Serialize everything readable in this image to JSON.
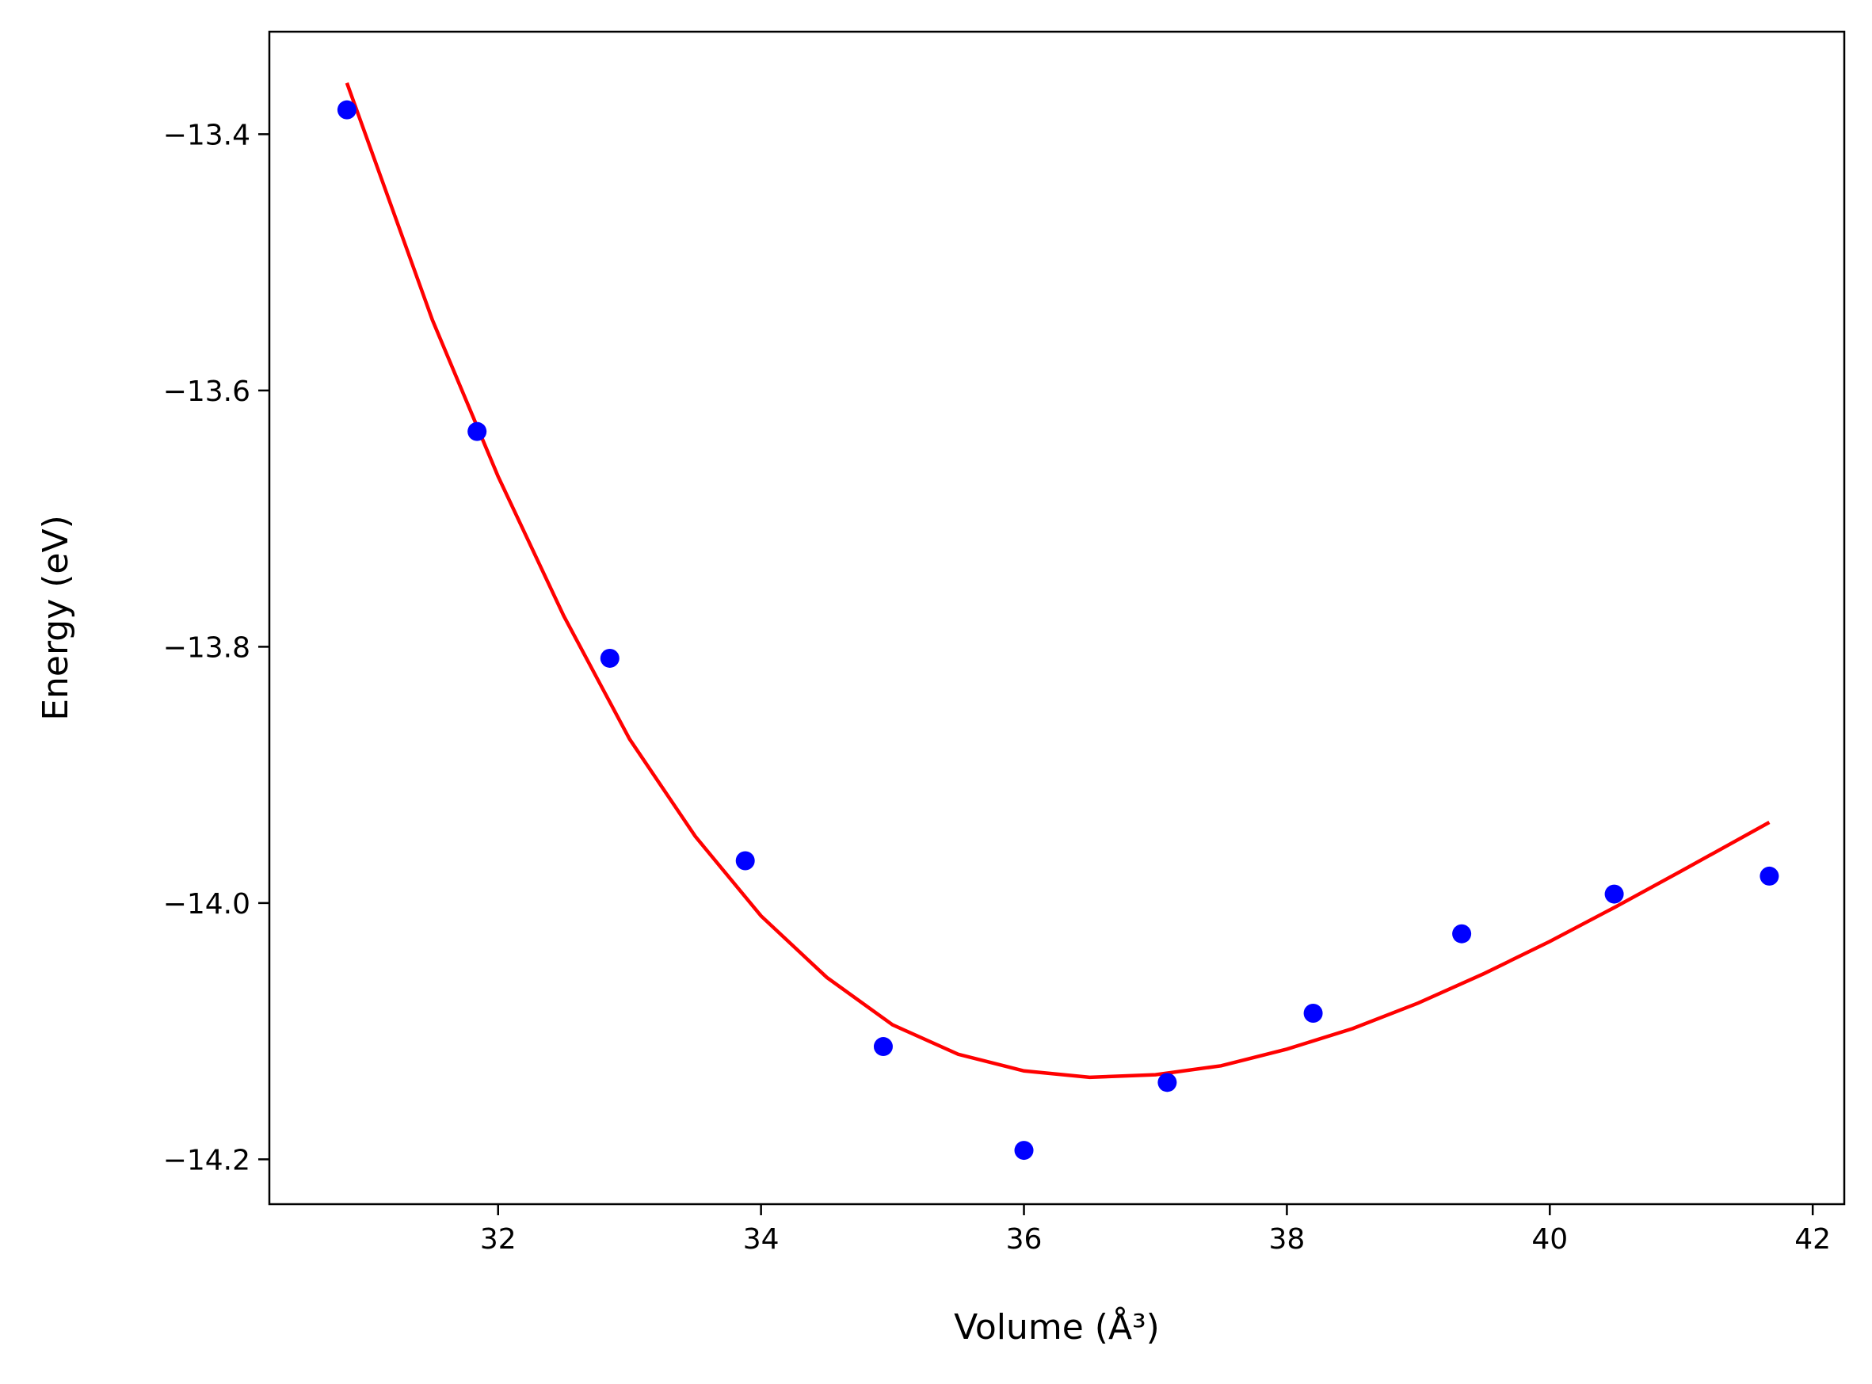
{
  "chart_data": {
    "type": "scatter",
    "title": "",
    "xlabel": "Volume (Å³)",
    "ylabel": "Energy (eV)",
    "xlim": [
      30.26,
      42.24
    ],
    "ylim": [
      -14.235,
      -13.32
    ],
    "xticks": [
      32,
      34,
      36,
      38,
      40,
      42
    ],
    "xtick_labels": [
      "32",
      "34",
      "36",
      "38",
      "40",
      "42"
    ],
    "yticks": [
      -14.2,
      -14.0,
      -13.8,
      -13.6,
      -13.4
    ],
    "ytick_labels": [
      "−14.2",
      "−14.0",
      "−13.8",
      "−13.6",
      "−13.4"
    ],
    "grid": false,
    "series": [
      {
        "kind": "points",
        "color": "#0000ff",
        "x": [
          30.85,
          31.84,
          32.85,
          33.88,
          34.93,
          36.0,
          37.09,
          38.2,
          39.33,
          40.49,
          41.67
        ],
        "y": [
          -13.381,
          -13.632,
          -13.809,
          -13.967,
          -14.112,
          -14.193,
          -14.14,
          -14.086,
          -14.024,
          -13.993,
          -13.979
        ]
      },
      {
        "kind": "line",
        "color": "#ff0000",
        "x": [
          30.85,
          31.5,
          32.0,
          32.5,
          33.0,
          33.5,
          34.0,
          34.5,
          35.0,
          35.5,
          36.0,
          36.5,
          37.0,
          37.5,
          38.0,
          38.5,
          39.0,
          39.5,
          40.0,
          40.5,
          41.0,
          41.67
        ],
        "y": [
          -13.36,
          -13.545,
          -13.667,
          -13.776,
          -13.872,
          -13.948,
          -14.01,
          -14.058,
          -14.095,
          -14.118,
          -14.131,
          -14.136,
          -14.134,
          -14.127,
          -14.114,
          -14.098,
          -14.078,
          -14.055,
          -14.03,
          -14.003,
          -13.975,
          -13.937
        ]
      }
    ]
  }
}
